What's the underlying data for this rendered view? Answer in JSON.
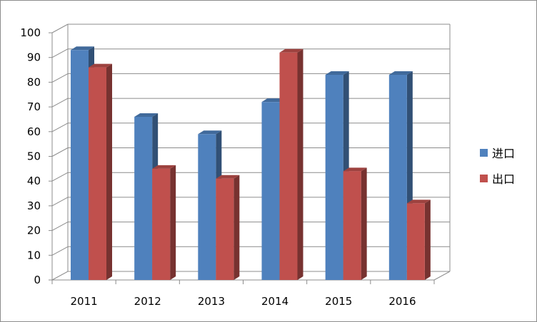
{
  "chart_data": {
    "type": "bar",
    "categories": [
      "2011",
      "2012",
      "2013",
      "2014",
      "2015",
      "2016"
    ],
    "series": [
      {
        "name": "进口",
        "values": [
          93,
          66,
          59,
          72,
          83,
          83
        ],
        "color": "#4f81bd"
      },
      {
        "name": "出口",
        "values": [
          86,
          45,
          41,
          92,
          44,
          31
        ],
        "color": "#c0504d"
      }
    ],
    "ylim": [
      0,
      100
    ],
    "yticks": [
      0,
      10,
      20,
      30,
      40,
      50,
      60,
      70,
      80,
      90,
      100
    ],
    "grid": true,
    "legend_position": "right",
    "three_d": true
  }
}
